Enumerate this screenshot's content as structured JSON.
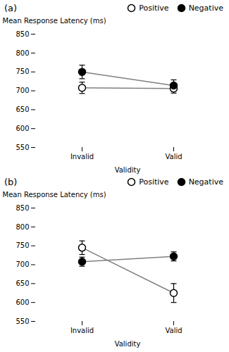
{
  "chart_data": [
    {
      "type": "line",
      "title": "(a)",
      "categories": [
        "Invalid",
        "Valid"
      ],
      "xlabel": "Validity",
      "ylabel": "Mean Response Latency (ms)",
      "series": [
        {
          "name": "Positive",
          "color": "white",
          "marker": "circle",
          "values": [
            708,
            706
          ],
          "errors": [
            15,
            12
          ]
        },
        {
          "name": "Negative",
          "color": "black",
          "marker": "circle",
          "values": [
            750,
            714
          ],
          "errors": [
            18,
            15
          ]
        }
      ],
      "ylim": [
        550,
        850
      ],
      "yticks": [
        550,
        600,
        650,
        700,
        750,
        800,
        850
      ],
      "legend": "upper right"
    },
    {
      "type": "line",
      "title": "(b)",
      "categories": [
        "Invalid",
        "Valid"
      ],
      "xlabel": "Validity",
      "ylabel": "Mean Response Latency (ms)",
      "series": [
        {
          "name": "Positive",
          "color": "white",
          "marker": "circle",
          "values": [
            745,
            625
          ],
          "errors": [
            18,
            25
          ]
        },
        {
          "name": "Negative",
          "color": "black",
          "marker": "circle",
          "values": [
            708,
            722
          ],
          "errors": [
            12,
            12
          ]
        }
      ],
      "ylim": [
        550,
        850
      ],
      "yticks": [
        550,
        600,
        650,
        700,
        750,
        800,
        850
      ],
      "legend": "upper right"
    }
  ]
}
